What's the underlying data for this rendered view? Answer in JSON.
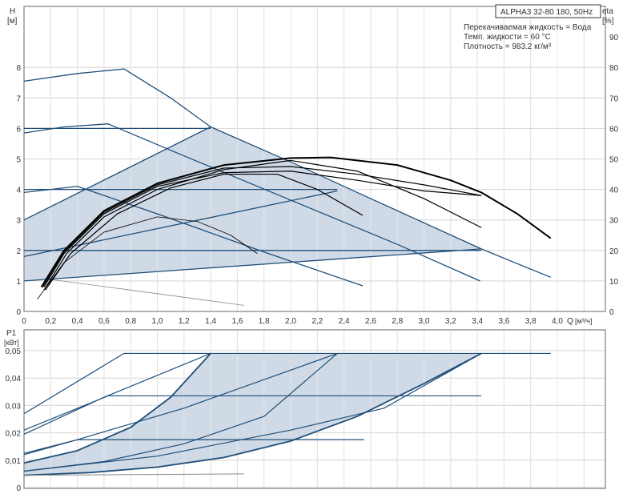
{
  "colors": {
    "curve": "#1f4e79",
    "eta": "#000000",
    "fill": "#cfdae6",
    "grid": "#d4d4d4",
    "min": "#888888"
  },
  "legend": {
    "title": "ALPHA3 32-80 180, 50Hz",
    "lines": [
      "Перекачиваемая жидкость = Вода",
      "Темп. жидкости = 60 °C",
      "Плотность = 983.2 кг/м³"
    ]
  },
  "chart_data": [
    {
      "type": "line",
      "ylabel": "H",
      "yunit": "[м]",
      "y2label": "eta",
      "y2unit": "[%]",
      "xlabel": "Q",
      "xunit": "[м³/ч]",
      "xlim": [
        0,
        4.4
      ],
      "ylim": [
        0,
        9.7
      ],
      "y2lim": [
        0,
        97
      ],
      "xticks": [
        "0",
        "0,2",
        "0,4",
        "0,6",
        "0,8",
        "1,0",
        "1,2",
        "1,4",
        "1,6",
        "1,8",
        "2,0",
        "2,2",
        "2,4",
        "2,6",
        "2,8",
        "3,0",
        "3,2",
        "3,4",
        "3,6",
        "3,8",
        "4,0"
      ],
      "yticks": [
        "0",
        "1",
        "2",
        "3",
        "4",
        "5",
        "6",
        "7",
        "8"
      ],
      "y2ticks": [
        "0",
        "10",
        "20",
        "30",
        "40",
        "50",
        "60",
        "70",
        "80",
        "90"
      ],
      "grid": true,
      "operating_area": [
        [
          0,
          1
        ],
        [
          0,
          3
        ],
        [
          1.4,
          6.05
        ],
        [
          3.43,
          2.05
        ]
      ],
      "head_curves": [
        [
          [
            0,
            7.55
          ],
          [
            0.4,
            7.8
          ],
          [
            0.75,
            7.95
          ],
          [
            1.1,
            7.0
          ],
          [
            1.4,
            6.05
          ],
          [
            2.0,
            4.9
          ],
          [
            2.6,
            3.7
          ],
          [
            3.43,
            2.05
          ],
          [
            3.95,
            1.12
          ]
        ],
        [
          [
            0,
            5.85
          ],
          [
            0.3,
            6.05
          ],
          [
            0.63,
            6.15
          ],
          [
            1.2,
            5.1
          ],
          [
            2.0,
            3.65
          ],
          [
            2.8,
            2.2
          ],
          [
            3.42,
            1.0
          ]
        ],
        [
          [
            0,
            3.9
          ],
          [
            0.4,
            4.1
          ],
          [
            1.0,
            3.2
          ],
          [
            1.8,
            1.95
          ],
          [
            2.54,
            0.84
          ]
        ],
        [
          [
            0,
            6.0
          ],
          [
            1.4,
            6.0
          ]
        ],
        [
          [
            0,
            4.0
          ],
          [
            2.35,
            4.0
          ]
        ],
        [
          [
            0,
            2.0
          ],
          [
            3.43,
            2.0
          ]
        ],
        [
          [
            0,
            3.0
          ],
          [
            1.4,
            6.05
          ]
        ],
        [
          [
            0,
            1.8
          ],
          [
            2.35,
            3.95
          ]
        ],
        [
          [
            0,
            1.0
          ],
          [
            3.43,
            2.05
          ]
        ]
      ],
      "min_curve": [
        [
          0.2,
          1.05
        ],
        [
          0.8,
          0.7
        ],
        [
          1.65,
          0.2
        ]
      ],
      "eta_curves": [
        {
          "w": 2,
          "pts": [
            [
              0.13,
              8
            ],
            [
              0.3,
              20
            ],
            [
              0.6,
              33
            ],
            [
              1.0,
              42
            ],
            [
              1.5,
              48
            ],
            [
              2.0,
              50.3
            ],
            [
              2.3,
              50.5
            ],
            [
              2.8,
              48
            ],
            [
              3.2,
              43
            ],
            [
              3.43,
              39
            ],
            [
              3.7,
              32
            ],
            [
              3.95,
              24
            ]
          ]
        },
        {
          "w": 1.2,
          "pts": [
            [
              0.14,
              8
            ],
            [
              0.3,
              19.5
            ],
            [
              0.6,
              32.5
            ],
            [
              1.0,
              41.5
            ],
            [
              1.5,
              47
            ],
            [
              2.0,
              47.5
            ],
            [
              2.5,
              45
            ],
            [
              3.0,
              41.5
            ],
            [
              3.43,
              38
            ]
          ]
        },
        {
          "w": 1.2,
          "pts": [
            [
              0.15,
              8
            ],
            [
              0.3,
              19
            ],
            [
              0.6,
              32
            ],
            [
              1.0,
              41
            ],
            [
              1.5,
              45.5
            ],
            [
              2.0,
              46
            ],
            [
              2.5,
              43
            ],
            [
              3.0,
              39.5
            ],
            [
              3.43,
              38
            ]
          ]
        },
        {
          "w": 1.2,
          "pts": [
            [
              0.15,
              7
            ],
            [
              0.32,
              19
            ],
            [
              0.6,
              31
            ],
            [
              1.0,
              40
            ],
            [
              1.5,
              46.5
            ],
            [
              2.0,
              49.5
            ],
            [
              2.5,
              46
            ],
            [
              3.0,
              37
            ],
            [
              3.43,
              27.5
            ]
          ]
        },
        {
          "w": 1.2,
          "pts": [
            [
              0.16,
              7
            ],
            [
              0.35,
              19
            ],
            [
              0.7,
              32
            ],
            [
              1.1,
              40.5
            ],
            [
              1.5,
              45
            ],
            [
              1.9,
              45
            ],
            [
              2.2,
              40
            ],
            [
              2.54,
              31.5
            ]
          ]
        },
        {
          "w": 0.8,
          "pts": [
            [
              0.1,
              4
            ],
            [
              0.3,
              16
            ],
            [
              0.6,
              26
            ],
            [
              1.0,
              31
            ],
            [
              1.3,
              29.5
            ],
            [
              1.55,
              25
            ],
            [
              1.75,
              19
            ]
          ]
        }
      ]
    },
    {
      "type": "line",
      "ylabel": "P1",
      "yunit": "[кВт]",
      "xlim": [
        0,
        4.4
      ],
      "ylim": [
        0,
        0.0575
      ],
      "yticks": [
        "0",
        "0,01",
        "0,02",
        "0,03",
        "0,04",
        "0,05"
      ],
      "grid": true,
      "operating_area": [
        [
          0,
          0.009
        ],
        [
          0.4,
          0.0135
        ],
        [
          0.8,
          0.022
        ],
        [
          1.1,
          0.033
        ],
        [
          1.4,
          0.049
        ],
        [
          3.43,
          0.049
        ],
        [
          3.0,
          0.038
        ],
        [
          2.5,
          0.026
        ],
        [
          2.0,
          0.017
        ],
        [
          1.5,
          0.011
        ],
        [
          1.0,
          0.0075
        ],
        [
          0.5,
          0.0055
        ],
        [
          0,
          0.0045
        ]
      ],
      "power_curves": [
        [
          [
            0,
            0.027
          ],
          [
            0.75,
            0.049
          ],
          [
            3.95,
            0.049
          ]
        ],
        [
          [
            0,
            0.021
          ],
          [
            0.63,
            0.0335
          ],
          [
            3.43,
            0.0335
          ]
        ],
        [
          [
            0,
            0.0195
          ],
          [
            0.6,
            0.033
          ],
          [
            1.4,
            0.049
          ]
        ],
        [
          [
            0,
            0.0125
          ],
          [
            0.4,
            0.0175
          ],
          [
            2.55,
            0.0175
          ]
        ],
        [
          [
            0,
            0.012
          ],
          [
            0.4,
            0.0175
          ],
          [
            1.2,
            0.029
          ],
          [
            2.35,
            0.049
          ]
        ],
        [
          [
            0,
            0.009
          ],
          [
            0.4,
            0.0135
          ],
          [
            0.8,
            0.022
          ],
          [
            1.1,
            0.033
          ],
          [
            1.4,
            0.049
          ]
        ],
        [
          [
            0,
            0.006
          ],
          [
            0.6,
            0.0095
          ],
          [
            1.2,
            0.016
          ],
          [
            1.8,
            0.026
          ],
          [
            2.35,
            0.049
          ]
        ],
        [
          [
            0,
            0.006
          ],
          [
            1.0,
            0.0115
          ],
          [
            2.0,
            0.021
          ],
          [
            2.7,
            0.029
          ],
          [
            3.43,
            0.049
          ]
        ],
        [
          [
            0,
            0.0045
          ],
          [
            0.5,
            0.0055
          ],
          [
            1.0,
            0.0075
          ],
          [
            1.5,
            0.011
          ],
          [
            2.0,
            0.017
          ],
          [
            2.5,
            0.026
          ],
          [
            3.0,
            0.038
          ],
          [
            3.43,
            0.049
          ]
        ]
      ],
      "min_curve": [
        [
          0,
          0.0045
        ],
        [
          1.65,
          0.005
        ]
      ]
    }
  ]
}
